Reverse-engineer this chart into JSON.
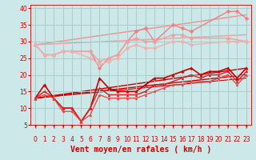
{
  "xlabel": "Vent moyen/en rafales ( km/h )",
  "xlim": [
    -0.5,
    23.5
  ],
  "ylim": [
    5,
    41
  ],
  "yticks": [
    5,
    10,
    15,
    20,
    25,
    30,
    35,
    40
  ],
  "xticks": [
    0,
    1,
    2,
    3,
    4,
    5,
    6,
    7,
    8,
    9,
    10,
    11,
    12,
    13,
    14,
    15,
    16,
    17,
    18,
    19,
    20,
    21,
    22,
    23
  ],
  "bg_color": "#cce8e8",
  "grid_color": "#aacccc",
  "series_light": [
    {
      "x": [
        0,
        1,
        2,
        3,
        4,
        6,
        7,
        8,
        9,
        10,
        11,
        12,
        13,
        15,
        16,
        17,
        21,
        22,
        23
      ],
      "y": [
        29,
        26,
        26,
        27,
        27,
        27,
        22,
        25,
        26,
        30,
        33,
        34,
        30,
        35,
        34,
        33,
        39,
        39,
        37
      ],
      "color": "#f08080",
      "lw": 1.0,
      "marker": "D",
      "ms": 2.5
    },
    {
      "x": [
        0,
        1,
        2,
        3,
        4,
        6,
        7,
        8,
        9,
        10,
        11,
        12,
        13,
        15,
        16,
        17,
        21,
        23
      ],
      "y": [
        29,
        26,
        26,
        27,
        27,
        27,
        24,
        25,
        26,
        30,
        31,
        30,
        30,
        32,
        32,
        31,
        31,
        30
      ],
      "color": "#f0a0a0",
      "lw": 1.0,
      "marker": "D",
      "ms": 2.5
    },
    {
      "x": [
        0,
        1,
        2,
        3,
        4,
        6,
        7,
        8,
        9,
        10,
        11,
        12,
        13,
        15,
        16,
        17,
        21,
        22,
        23
      ],
      "y": [
        29,
        26,
        26,
        27,
        27,
        25,
        23,
        24,
        25,
        28,
        29,
        28,
        28,
        30,
        30,
        29,
        30,
        30,
        30
      ],
      "color": "#f0b0b0",
      "lw": 1.0,
      "marker": "D",
      "ms": 2.5
    }
  ],
  "series_dark": [
    {
      "x": [
        0,
        1,
        2,
        3,
        4,
        5,
        6,
        7,
        8,
        9,
        10,
        11,
        12,
        13,
        14,
        15,
        16,
        17,
        18,
        19,
        20,
        21,
        22,
        23
      ],
      "y": [
        13,
        17,
        13,
        10,
        10,
        6,
        10,
        19,
        16,
        15,
        15,
        15,
        17,
        19,
        19,
        20,
        21,
        22,
        20,
        21,
        21,
        22,
        19,
        22
      ],
      "color": "#cc0000",
      "lw": 1.2,
      "marker": "^",
      "ms": 2.5
    },
    {
      "x": [
        0,
        1,
        2,
        3,
        4,
        5,
        6,
        7,
        8,
        9,
        10,
        11,
        12,
        13,
        14,
        15,
        16,
        17,
        18,
        19,
        20,
        21,
        22,
        23
      ],
      "y": [
        13,
        15,
        13,
        10,
        10,
        6,
        10,
        16,
        14,
        14,
        14,
        14,
        15,
        17,
        17,
        18,
        19,
        20,
        19,
        20,
        20,
        21,
        18,
        21
      ],
      "color": "#dd2020",
      "lw": 1.0,
      "marker": "^",
      "ms": 2.0
    },
    {
      "x": [
        0,
        1,
        2,
        3,
        4,
        5,
        6,
        7,
        8,
        9,
        10,
        11,
        12,
        13,
        14,
        15,
        16,
        17,
        18,
        19,
        20,
        21,
        22,
        23
      ],
      "y": [
        13,
        14,
        13,
        9,
        9,
        6,
        8,
        14,
        13,
        13,
        13,
        13,
        14,
        15,
        16,
        17,
        17,
        18,
        18,
        18,
        19,
        20,
        17,
        20
      ],
      "color": "#ee4040",
      "lw": 0.9,
      "marker": "^",
      "ms": 2.0
    }
  ],
  "trend_lines_dark": [
    {
      "x": [
        0,
        23
      ],
      "y": [
        13,
        22
      ],
      "color": "#cc0000",
      "lw": 1.0
    },
    {
      "x": [
        0,
        23
      ],
      "y": [
        13,
        20
      ],
      "color": "#cc0000",
      "lw": 1.0
    },
    {
      "x": [
        0,
        23
      ],
      "y": [
        13,
        19
      ],
      "color": "#cc0000",
      "lw": 0.8
    }
  ],
  "trend_lines_light": [
    {
      "x": [
        0,
        23
      ],
      "y": [
        29,
        38
      ],
      "color": "#f09090",
      "lw": 1.0
    },
    {
      "x": [
        0,
        23
      ],
      "y": [
        29,
        32
      ],
      "color": "#f0a0a0",
      "lw": 1.0
    }
  ],
  "arrow_symbol": "↑",
  "xlabel_color": "#cc0000",
  "tick_color": "#cc0000",
  "xlabel_fontsize": 7
}
